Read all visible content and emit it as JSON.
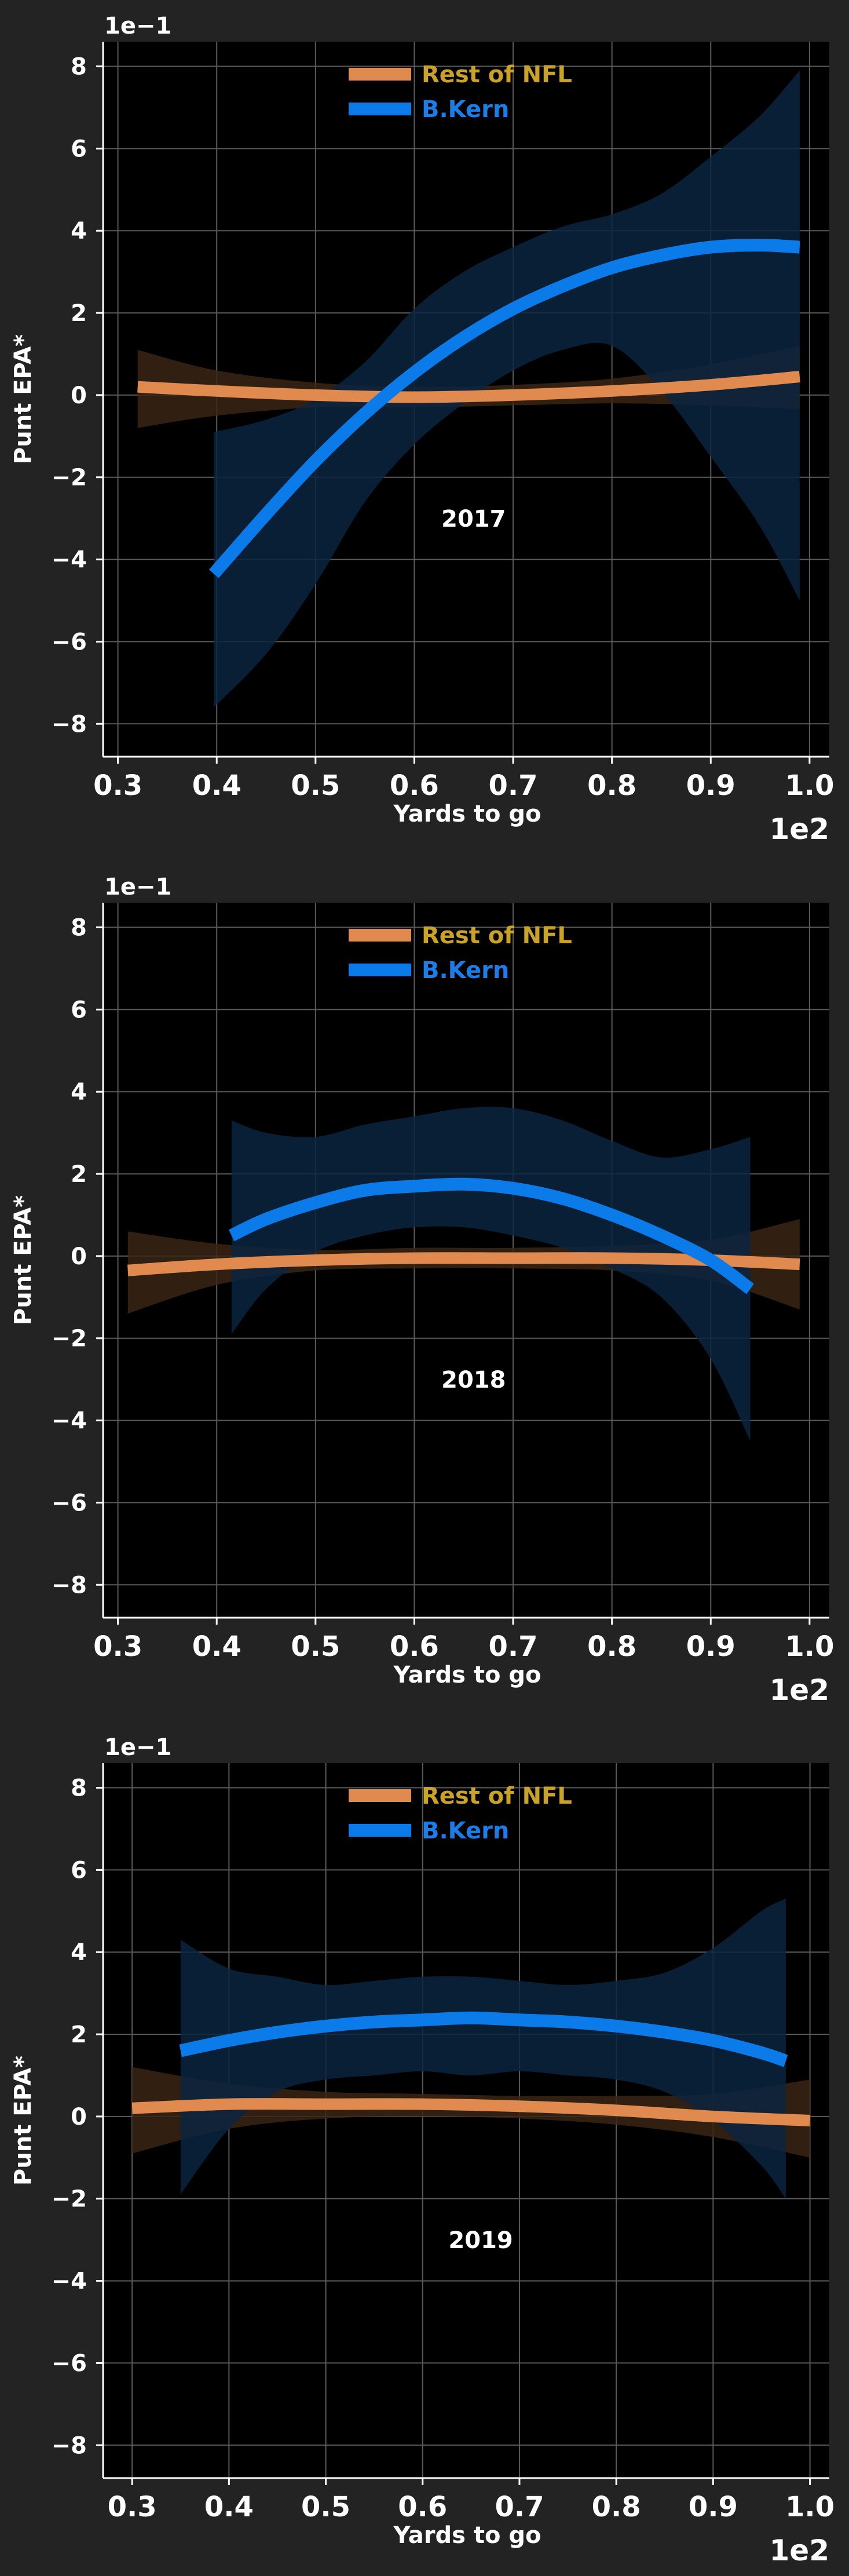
{
  "colors": {
    "background": "#232323",
    "plot_background": "#000000",
    "grid": "#5a5a5a",
    "axis": "#ffffff",
    "rest_of_nfl": "#e08a4f",
    "rest_of_nfl_legend_text": "#c9a227",
    "kern": "#0a7be8",
    "kern_legend_text": "#1a7de8",
    "kern_band": "#0b2540",
    "rest_band": "#3a2414"
  },
  "chart_data": [
    {
      "type": "line",
      "title": "2017",
      "xlabel": "Yards to go",
      "ylabel": "Punt EPA*",
      "x_offset_label": "1e2",
      "y_offset_label": "1e−1",
      "xlim": [
        0.285,
        1.02
      ],
      "ylim": [
        -8.8,
        8.6
      ],
      "xticks": [
        "0.3",
        "0.4",
        "0.5",
        "0.6",
        "0.7",
        "0.8",
        "0.9",
        "1.0"
      ],
      "yticks": [
        "−8",
        "−6",
        "−4",
        "−2",
        "0",
        "2",
        "4",
        "6",
        "8"
      ],
      "grid": true,
      "legend": "top-center",
      "series": [
        {
          "name": "Rest of NFL",
          "x": [
            0.32,
            0.4,
            0.5,
            0.6,
            0.7,
            0.8,
            0.9,
            0.99
          ],
          "values": [
            0.2,
            0.1,
            0.0,
            -0.05,
            0.0,
            0.1,
            0.25,
            0.45
          ],
          "ci_lower": [
            -0.8,
            -0.5,
            -0.3,
            -0.3,
            -0.25,
            -0.2,
            -0.25,
            -0.35
          ],
          "ci_upper": [
            1.1,
            0.6,
            0.3,
            0.2,
            0.25,
            0.4,
            0.75,
            1.2
          ]
        },
        {
          "name": "B.Kern",
          "x": [
            0.397,
            0.45,
            0.5,
            0.55,
            0.6,
            0.65,
            0.7,
            0.75,
            0.8,
            0.85,
            0.9,
            0.95,
            0.99
          ],
          "values": [
            -4.35,
            -2.9,
            -1.6,
            -0.45,
            0.55,
            1.4,
            2.1,
            2.65,
            3.1,
            3.4,
            3.6,
            3.65,
            3.6
          ],
          "ci_lower": [
            -7.6,
            -6.3,
            -4.6,
            -2.6,
            -1.2,
            -0.2,
            0.6,
            1.1,
            1.2,
            0.1,
            -1.5,
            -3.2,
            -5.0
          ],
          "ci_upper": [
            -0.9,
            -0.6,
            -0.1,
            0.8,
            2.1,
            3.0,
            3.6,
            4.1,
            4.4,
            4.9,
            5.8,
            6.8,
            7.9
          ]
        }
      ]
    },
    {
      "type": "line",
      "title": "2018",
      "xlabel": "Yards to go",
      "ylabel": "Punt EPA*",
      "x_offset_label": "1e2",
      "y_offset_label": "1e−1",
      "xlim": [
        0.285,
        1.02
      ],
      "ylim": [
        -8.8,
        8.6
      ],
      "xticks": [
        "0.3",
        "0.4",
        "0.5",
        "0.6",
        "0.7",
        "0.8",
        "0.9",
        "1.0"
      ],
      "yticks": [
        "−8",
        "−6",
        "−4",
        "−2",
        "0",
        "2",
        "4",
        "6",
        "8"
      ],
      "grid": true,
      "legend": "top-center",
      "series": [
        {
          "name": "Rest of NFL",
          "x": [
            0.31,
            0.4,
            0.5,
            0.6,
            0.7,
            0.8,
            0.9,
            0.99
          ],
          "values": [
            -0.35,
            -0.2,
            -0.1,
            -0.05,
            -0.05,
            -0.05,
            -0.1,
            -0.2
          ],
          "ci_lower": [
            -1.4,
            -0.7,
            -0.35,
            -0.3,
            -0.3,
            -0.35,
            -0.6,
            -1.3
          ],
          "ci_upper": [
            0.6,
            0.3,
            0.15,
            0.2,
            0.2,
            0.25,
            0.4,
            0.9
          ]
        },
        {
          "name": "B.Kern",
          "x": [
            0.415,
            0.45,
            0.5,
            0.55,
            0.6,
            0.65,
            0.7,
            0.75,
            0.8,
            0.85,
            0.9,
            0.94
          ],
          "values": [
            0.5,
            0.9,
            1.3,
            1.6,
            1.7,
            1.75,
            1.65,
            1.4,
            1.0,
            0.5,
            -0.1,
            -0.8
          ],
          "ci_lower": [
            -1.9,
            -0.8,
            0.1,
            0.5,
            0.7,
            0.7,
            0.5,
            0.2,
            -0.3,
            -1.0,
            -2.5,
            -4.5
          ],
          "ci_upper": [
            3.3,
            3.0,
            2.9,
            3.2,
            3.4,
            3.6,
            3.6,
            3.3,
            2.8,
            2.4,
            2.6,
            2.9
          ]
        }
      ]
    },
    {
      "type": "line",
      "title": "2019",
      "xlabel": "Yards to go",
      "ylabel": "Punt EPA*",
      "x_offset_label": "1e2",
      "y_offset_label": "1e−1",
      "xlim": [
        0.27,
        1.02
      ],
      "ylim": [
        -8.8,
        8.6
      ],
      "xticks": [
        "0.3",
        "0.4",
        "0.5",
        "0.6",
        "0.7",
        "0.8",
        "0.9",
        "1.0"
      ],
      "yticks": [
        "−8",
        "−6",
        "−4",
        "−2",
        "0",
        "2",
        "4",
        "6",
        "8"
      ],
      "grid": true,
      "legend": "top-center",
      "series": [
        {
          "name": "Rest of NFL",
          "x": [
            0.3,
            0.4,
            0.5,
            0.6,
            0.7,
            0.8,
            0.9,
            1.0
          ],
          "values": [
            0.2,
            0.3,
            0.3,
            0.3,
            0.25,
            0.15,
            0.0,
            -0.1
          ],
          "ci_lower": [
            -0.9,
            -0.3,
            -0.05,
            0.0,
            -0.05,
            -0.2,
            -0.5,
            -1.0
          ],
          "ci_upper": [
            1.2,
            0.8,
            0.6,
            0.55,
            0.5,
            0.5,
            0.55,
            0.9
          ]
        },
        {
          "name": "B.Kern",
          "x": [
            0.35,
            0.4,
            0.45,
            0.5,
            0.55,
            0.6,
            0.65,
            0.7,
            0.75,
            0.8,
            0.85,
            0.9,
            0.95,
            0.975
          ],
          "values": [
            1.6,
            1.85,
            2.05,
            2.2,
            2.3,
            2.35,
            2.4,
            2.35,
            2.3,
            2.2,
            2.05,
            1.85,
            1.55,
            1.35
          ],
          "ci_lower": [
            -1.9,
            -0.3,
            0.6,
            0.9,
            1.0,
            1.1,
            1.0,
            1.1,
            1.0,
            0.9,
            0.6,
            -0.1,
            -1.2,
            -2.0
          ],
          "ci_upper": [
            4.3,
            3.6,
            3.4,
            3.2,
            3.3,
            3.4,
            3.4,
            3.3,
            3.2,
            3.3,
            3.5,
            4.1,
            5.0,
            5.3
          ]
        }
      ]
    }
  ]
}
